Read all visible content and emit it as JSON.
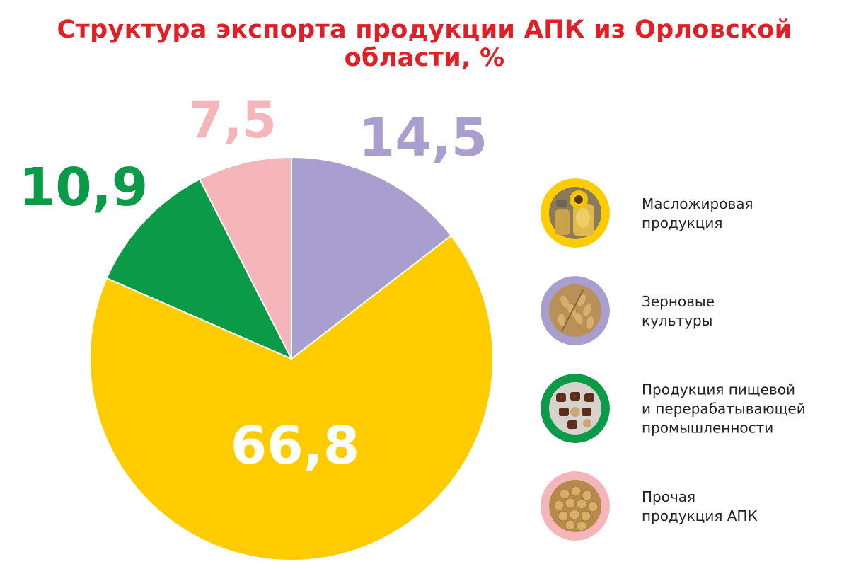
{
  "chart_data": {
    "type": "pie",
    "title": "Структура экспорта продукции АПК из Орловской области, %",
    "categories": [
      "Масложировая продукция",
      "Зерновые культуры",
      "Продукция пищевой и перерабатывающей промышленности",
      "Прочая продукция АПК"
    ],
    "values": [
      66.8,
      14.5,
      10.9,
      7.5
    ],
    "value_labels": [
      "66,8",
      "14,5",
      "10,9",
      "7,5"
    ],
    "colors": [
      "#FFCC00",
      "#A99FCF",
      "#0A9A48",
      "#F4B6BA"
    ],
    "label_colors": [
      "#FFFFFF",
      "#A99FCF",
      "#0A9A48",
      "#F4B6BA"
    ],
    "legend_placement": "right"
  },
  "legend": [
    {
      "label_lines": [
        "Масложировая",
        "продукция"
      ],
      "icon": "sunflower-oil-icon"
    },
    {
      "label_lines": [
        "Зерновые",
        "культуры"
      ],
      "icon": "wheat-grain-icon"
    },
    {
      "label_lines": [
        "Продукция пищевой",
        "и перерабатывающей",
        "промышленности"
      ],
      "icon": "chocolates-icon"
    },
    {
      "label_lines": [
        "Прочая",
        "продукция АПК"
      ],
      "icon": "soybeans-icon"
    }
  ],
  "title_color": "#E11F26"
}
